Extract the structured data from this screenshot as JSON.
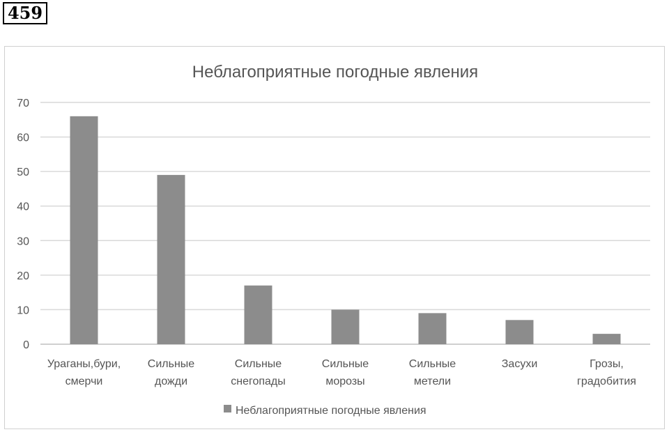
{
  "problem_number": "459",
  "chart_data": {
    "type": "bar",
    "title": "Неблагоприятные погодные явления",
    "xlabel": "",
    "ylabel": "",
    "ylim": [
      0,
      70
    ],
    "yticks": [
      0,
      10,
      20,
      30,
      40,
      50,
      60,
      70
    ],
    "grid": true,
    "legend_position": "bottom",
    "categories": [
      [
        "Ураганы,бури,",
        "смерчи"
      ],
      [
        "Сильные",
        "дожди"
      ],
      [
        "Сильные",
        "снегопады"
      ],
      [
        "Сильные",
        "морозы"
      ],
      [
        "Сильные",
        "метели"
      ],
      [
        "Засухи"
      ],
      [
        "Грозы,",
        "градобития"
      ]
    ],
    "series": [
      {
        "name": "Неблагоприятные погодные явления",
        "values": [
          66,
          49,
          17,
          10,
          9,
          7,
          3
        ],
        "color": "#8c8c8c"
      }
    ]
  }
}
